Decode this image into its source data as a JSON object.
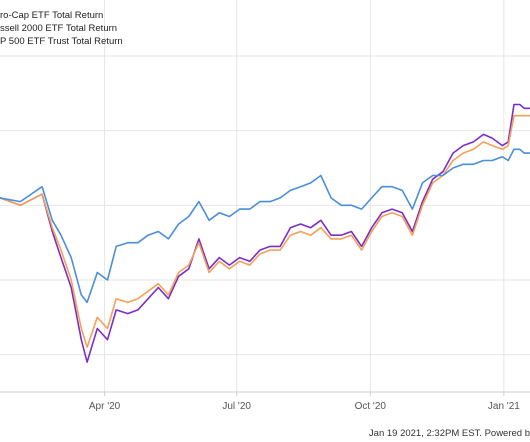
{
  "chart_data": {
    "type": "line",
    "title": "",
    "xlabel": "",
    "ylabel": "",
    "x_ticks": [
      {
        "date": "2020-04-01",
        "label": "Apr '20"
      },
      {
        "date": "2020-07-01",
        "label": "Jul '20"
      },
      {
        "date": "2020-10-01",
        "label": "Oct '20"
      },
      {
        "date": "2021-01-01",
        "label": "Jan '21"
      }
    ],
    "xlim": [
      "2020-01-20",
      "2021-01-19"
    ],
    "legend_position": "top-left",
    "grid": true,
    "series": [
      {
        "name": "ro-Cap ETF Total Return",
        "color": "#7b2fc7",
        "points": [
          [
            "2020-01-20",
            2
          ],
          [
            "2020-02-03",
            0
          ],
          [
            "2020-02-18",
            3
          ],
          [
            "2020-02-25",
            -7
          ],
          [
            "2020-03-02",
            -14
          ],
          [
            "2020-03-09",
            -22
          ],
          [
            "2020-03-16",
            -36
          ],
          [
            "2020-03-20",
            -42
          ],
          [
            "2020-03-27",
            -33
          ],
          [
            "2020-04-03",
            -36
          ],
          [
            "2020-04-09",
            -28
          ],
          [
            "2020-04-17",
            -29
          ],
          [
            "2020-04-24",
            -28
          ],
          [
            "2020-05-01",
            -25
          ],
          [
            "2020-05-08",
            -22
          ],
          [
            "2020-05-15",
            -25
          ],
          [
            "2020-05-22",
            -19
          ],
          [
            "2020-05-29",
            -17
          ],
          [
            "2020-06-05",
            -9
          ],
          [
            "2020-06-12",
            -17
          ],
          [
            "2020-06-19",
            -14
          ],
          [
            "2020-06-26",
            -16
          ],
          [
            "2020-07-03",
            -14
          ],
          [
            "2020-07-10",
            -15
          ],
          [
            "2020-07-17",
            -12
          ],
          [
            "2020-07-24",
            -11
          ],
          [
            "2020-07-31",
            -11
          ],
          [
            "2020-08-07",
            -6
          ],
          [
            "2020-08-14",
            -5
          ],
          [
            "2020-08-21",
            -6
          ],
          [
            "2020-08-28",
            -4
          ],
          [
            "2020-09-04",
            -8
          ],
          [
            "2020-09-11",
            -8
          ],
          [
            "2020-09-18",
            -7
          ],
          [
            "2020-09-25",
            -11
          ],
          [
            "2020-10-02",
            -6
          ],
          [
            "2020-10-09",
            -2
          ],
          [
            "2020-10-16",
            -1
          ],
          [
            "2020-10-23",
            -2
          ],
          [
            "2020-10-30",
            -7
          ],
          [
            "2020-11-06",
            1
          ],
          [
            "2020-11-13",
            7
          ],
          [
            "2020-11-20",
            9
          ],
          [
            "2020-11-27",
            14
          ],
          [
            "2020-12-04",
            16
          ],
          [
            "2020-12-11",
            17
          ],
          [
            "2020-12-18",
            19
          ],
          [
            "2020-12-24",
            18
          ],
          [
            "2020-12-31",
            16
          ],
          [
            "2021-01-04",
            17
          ],
          [
            "2021-01-08",
            27
          ],
          [
            "2021-01-12",
            27
          ],
          [
            "2021-01-15",
            26
          ],
          [
            "2021-01-19",
            26
          ]
        ]
      },
      {
        "name": "ssell 2000 ETF Total Return",
        "color": "#f5a05a",
        "points": [
          [
            "2020-01-20",
            2
          ],
          [
            "2020-02-03",
            0
          ],
          [
            "2020-02-18",
            3
          ],
          [
            "2020-02-25",
            -6
          ],
          [
            "2020-03-02",
            -12
          ],
          [
            "2020-03-09",
            -20
          ],
          [
            "2020-03-16",
            -33
          ],
          [
            "2020-03-20",
            -38
          ],
          [
            "2020-03-27",
            -30
          ],
          [
            "2020-04-03",
            -33
          ],
          [
            "2020-04-09",
            -25
          ],
          [
            "2020-04-17",
            -26
          ],
          [
            "2020-04-24",
            -25
          ],
          [
            "2020-05-01",
            -23
          ],
          [
            "2020-05-08",
            -21
          ],
          [
            "2020-05-15",
            -24
          ],
          [
            "2020-05-22",
            -18
          ],
          [
            "2020-05-29",
            -16
          ],
          [
            "2020-06-05",
            -10
          ],
          [
            "2020-06-12",
            -18
          ],
          [
            "2020-06-19",
            -15
          ],
          [
            "2020-06-26",
            -17
          ],
          [
            "2020-07-03",
            -15
          ],
          [
            "2020-07-10",
            -16
          ],
          [
            "2020-07-17",
            -13
          ],
          [
            "2020-07-24",
            -12
          ],
          [
            "2020-07-31",
            -12
          ],
          [
            "2020-08-07",
            -8
          ],
          [
            "2020-08-14",
            -7
          ],
          [
            "2020-08-21",
            -8
          ],
          [
            "2020-08-28",
            -6
          ],
          [
            "2020-09-04",
            -9
          ],
          [
            "2020-09-11",
            -9
          ],
          [
            "2020-09-18",
            -8
          ],
          [
            "2020-09-25",
            -12
          ],
          [
            "2020-10-02",
            -7
          ],
          [
            "2020-10-09",
            -3
          ],
          [
            "2020-10-16",
            -2
          ],
          [
            "2020-10-23",
            -3
          ],
          [
            "2020-10-30",
            -8
          ],
          [
            "2020-11-06",
            0
          ],
          [
            "2020-11-13",
            6
          ],
          [
            "2020-11-20",
            8
          ],
          [
            "2020-11-27",
            12
          ],
          [
            "2020-12-04",
            14
          ],
          [
            "2020-12-11",
            15
          ],
          [
            "2020-12-18",
            17
          ],
          [
            "2020-12-24",
            16
          ],
          [
            "2020-12-31",
            15
          ],
          [
            "2021-01-04",
            16
          ],
          [
            "2021-01-08",
            24
          ],
          [
            "2021-01-12",
            24
          ],
          [
            "2021-01-15",
            24
          ],
          [
            "2021-01-19",
            24
          ]
        ]
      },
      {
        "name": "P 500 ETF Trust Total Return",
        "color": "#4a8fd9",
        "points": [
          [
            "2020-01-20",
            2
          ],
          [
            "2020-02-03",
            1
          ],
          [
            "2020-02-18",
            5
          ],
          [
            "2020-02-25",
            -4
          ],
          [
            "2020-03-02",
            -8
          ],
          [
            "2020-03-09",
            -14
          ],
          [
            "2020-03-16",
            -24
          ],
          [
            "2020-03-20",
            -26
          ],
          [
            "2020-03-27",
            -18
          ],
          [
            "2020-04-03",
            -20
          ],
          [
            "2020-04-09",
            -11
          ],
          [
            "2020-04-17",
            -10
          ],
          [
            "2020-04-24",
            -10
          ],
          [
            "2020-05-01",
            -8
          ],
          [
            "2020-05-08",
            -7
          ],
          [
            "2020-05-15",
            -9
          ],
          [
            "2020-05-22",
            -5
          ],
          [
            "2020-05-29",
            -3
          ],
          [
            "2020-06-05",
            1
          ],
          [
            "2020-06-12",
            -4
          ],
          [
            "2020-06-19",
            -2
          ],
          [
            "2020-06-26",
            -3
          ],
          [
            "2020-07-03",
            -1
          ],
          [
            "2020-07-10",
            -1
          ],
          [
            "2020-07-17",
            1
          ],
          [
            "2020-07-24",
            1
          ],
          [
            "2020-07-31",
            2
          ],
          [
            "2020-08-07",
            4
          ],
          [
            "2020-08-14",
            5
          ],
          [
            "2020-08-21",
            6
          ],
          [
            "2020-08-28",
            8
          ],
          [
            "2020-09-04",
            2
          ],
          [
            "2020-09-11",
            0
          ],
          [
            "2020-09-18",
            0
          ],
          [
            "2020-09-25",
            -1
          ],
          [
            "2020-10-02",
            2
          ],
          [
            "2020-10-09",
            5
          ],
          [
            "2020-10-16",
            5
          ],
          [
            "2020-10-23",
            4
          ],
          [
            "2020-10-30",
            -1
          ],
          [
            "2020-11-06",
            6
          ],
          [
            "2020-11-13",
            8
          ],
          [
            "2020-11-20",
            8
          ],
          [
            "2020-11-27",
            10
          ],
          [
            "2020-12-04",
            11
          ],
          [
            "2020-12-11",
            11
          ],
          [
            "2020-12-18",
            12
          ],
          [
            "2020-12-24",
            12
          ],
          [
            "2020-12-31",
            13
          ],
          [
            "2021-01-04",
            12
          ],
          [
            "2021-01-08",
            15
          ],
          [
            "2021-01-12",
            15
          ],
          [
            "2021-01-15",
            14
          ],
          [
            "2021-01-19",
            14
          ]
        ]
      }
    ],
    "y_gridlines": [
      40,
      20,
      0,
      -20,
      -40
    ]
  },
  "footer": {
    "text": "Jan 19 2021, 2:32PM EST. Powered b"
  }
}
